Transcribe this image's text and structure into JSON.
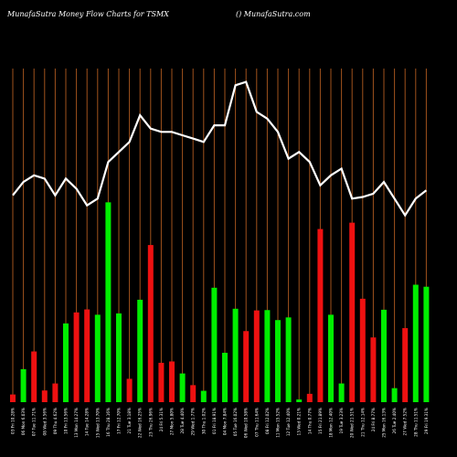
{
  "header": {
    "title": "MunafaSutra  Money Flow  Charts for TSMX",
    "watermark": "() MunafaSutra.com"
  },
  "chart_data": {
    "type": "bar",
    "title": "MunafaSutra  Money Flow  Charts for TSMX",
    "colors": {
      "up": "#00ee00",
      "down": "#ee1111",
      "line": "#ffffff",
      "grid": "#a0521d",
      "background": "#000000"
    },
    "categories": [
      "03 Fri 10.28%",
      "06 Mon 6.03%",
      "07 Tue 11.71%",
      "08 Wed 3.56%",
      "09 Thu 4.62%",
      "10 Fri 13.56%",
      "13 Mon 14.27%",
      "14 Tue 14.28%",
      "15 Wed 13.70%",
      "16 Thu 28.16%",
      "17 Fri 12.70%",
      "21 Tue 3.18%",
      "22 Wed 16.25%",
      "23 Thu 26.96%",
      "24 Fri 5.31%",
      "27 Mon 5.80%",
      "28 Tue 4.40%",
      "29 Wed 1.77%",
      "30 Thu 1.02%",
      "01 Fri 18.91%",
      "04 Mon 7.84%",
      "05 Tue 16.02%",
      "06 Wed 10.58%",
      "07 Thu 11.64%",
      "08 Fri 12.02%",
      "11 Mon 15.52%",
      "12 Tue 12.40%",
      "13 Wed 0.21%",
      "14 Thu 0.77%",
      "15 Fri 21.89%",
      "18 Mon 12.40%",
      "19 Tue 3.23%",
      "20 Wed 21.51%",
      "21 Thu 12.14%",
      "24 Fri 8.77%",
      "25 Mon 16.13%",
      "26 Tue 2.40%",
      "27 Wed 7.52%",
      "28 Thu 11.51%",
      "29 Fri 19.31%"
    ],
    "values": [
      2.3,
      9.9,
      15.2,
      3.5,
      5.6,
      23.6,
      26.9,
      27.8,
      26.2,
      59.9,
      26.6,
      7.0,
      30.7,
      47.1,
      11.8,
      12.2,
      8.6,
      5.1,
      3.4,
      34.3,
      14.8,
      28.0,
      21.3,
      27.5,
      27.6,
      24.6,
      25.4,
      0.8,
      2.5,
      51.9,
      26.2,
      5.6,
      53.8,
      31.0,
      19.4,
      27.7,
      4.2,
      22.2,
      35.2,
      34.6
    ],
    "directions": [
      "down",
      "up",
      "down",
      "down",
      "down",
      "up",
      "down",
      "down",
      "up",
      "up",
      "up",
      "down",
      "up",
      "down",
      "down",
      "down",
      "up",
      "down",
      "up",
      "up",
      "up",
      "up",
      "down",
      "down",
      "up",
      "up",
      "up",
      "up",
      "down",
      "down",
      "up",
      "up",
      "down",
      "down",
      "down",
      "up",
      "up",
      "down",
      "up",
      "up"
    ],
    "line": [
      62,
      66,
      68,
      67,
      62,
      67,
      64,
      59,
      61,
      72,
      75,
      78,
      86,
      82,
      81,
      81,
      80,
      79,
      78,
      83,
      83,
      95,
      96,
      87,
      85,
      81,
      73,
      75,
      72,
      65,
      68,
      70,
      61,
      61.5,
      62.5,
      66,
      61,
      56,
      61,
      63.5
    ],
    "xlabel": "",
    "ylabel": "",
    "grid": true,
    "ylim": [
      0,
      100
    ]
  }
}
